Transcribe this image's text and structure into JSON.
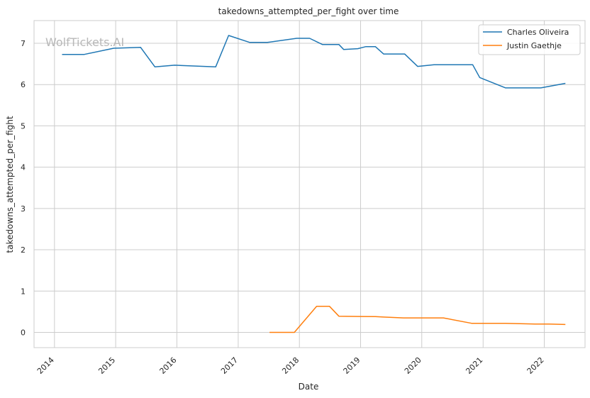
{
  "chart_data": {
    "type": "line",
    "title": "takedowns_attempted_per_fight over time",
    "xlabel": "Date",
    "ylabel": "takedowns_attempted_per_fight",
    "watermark": "WolfTickets.AI",
    "xlim": [
      "2013-09-01",
      "2022-09-01"
    ],
    "ylim": [
      -0.37,
      7.55
    ],
    "x_ticks": [
      "2014-01-01",
      "2015-01-01",
      "2016-01-01",
      "2017-01-01",
      "2018-01-01",
      "2019-01-01",
      "2020-01-01",
      "2021-01-01",
      "2022-01-01"
    ],
    "x_tick_labels": [
      "2014",
      "2015",
      "2016",
      "2017",
      "2018",
      "2019",
      "2020",
      "2021",
      "2022"
    ],
    "y_ticks": [
      0,
      1,
      2,
      3,
      4,
      5,
      6,
      7
    ],
    "y_tick_labels": [
      "0",
      "1",
      "2",
      "3",
      "4",
      "5",
      "6",
      "7"
    ],
    "grid": true,
    "legend_position": "top-right",
    "series": [
      {
        "name": "Charles Oliveira",
        "color": "#1f77b4",
        "points": [
          [
            "2014-02-15",
            6.73
          ],
          [
            "2014-06-28",
            6.73
          ],
          [
            "2014-12-20",
            6.88
          ],
          [
            "2015-05-30",
            6.9
          ],
          [
            "2015-08-23",
            6.43
          ],
          [
            "2015-12-19",
            6.47
          ],
          [
            "2016-08-20",
            6.43
          ],
          [
            "2016-11-05",
            7.19
          ],
          [
            "2017-03-11",
            7.02
          ],
          [
            "2017-06-24",
            7.02
          ],
          [
            "2017-12-16",
            7.12
          ],
          [
            "2018-03-03",
            7.12
          ],
          [
            "2018-05-19",
            6.97
          ],
          [
            "2018-08-25",
            6.97
          ],
          [
            "2018-09-22",
            6.85
          ],
          [
            "2018-12-15",
            6.87
          ],
          [
            "2019-02-02",
            6.92
          ],
          [
            "2019-03-30",
            6.92
          ],
          [
            "2019-05-18",
            6.74
          ],
          [
            "2019-09-21",
            6.74
          ],
          [
            "2019-12-07",
            6.44
          ],
          [
            "2020-03-14",
            6.48
          ],
          [
            "2020-10-31",
            6.48
          ],
          [
            "2020-12-12",
            6.17
          ],
          [
            "2021-05-15",
            5.92
          ],
          [
            "2021-12-11",
            5.92
          ],
          [
            "2022-05-07",
            6.03
          ]
        ]
      },
      {
        "name": "Justin Gaethje",
        "color": "#ff7f0e",
        "points": [
          [
            "2017-07-07",
            0.0
          ],
          [
            "2017-12-02",
            0.0
          ],
          [
            "2018-04-14",
            0.63
          ],
          [
            "2018-06-30",
            0.63
          ],
          [
            "2018-08-25",
            0.39
          ],
          [
            "2019-03-30",
            0.38
          ],
          [
            "2019-05-18",
            0.37
          ],
          [
            "2019-09-14",
            0.35
          ],
          [
            "2020-05-09",
            0.35
          ],
          [
            "2020-10-24",
            0.22
          ],
          [
            "2021-05-15",
            0.22
          ],
          [
            "2021-11-06",
            0.2
          ],
          [
            "2022-01-29",
            0.2
          ],
          [
            "2022-05-07",
            0.19
          ]
        ]
      }
    ]
  }
}
